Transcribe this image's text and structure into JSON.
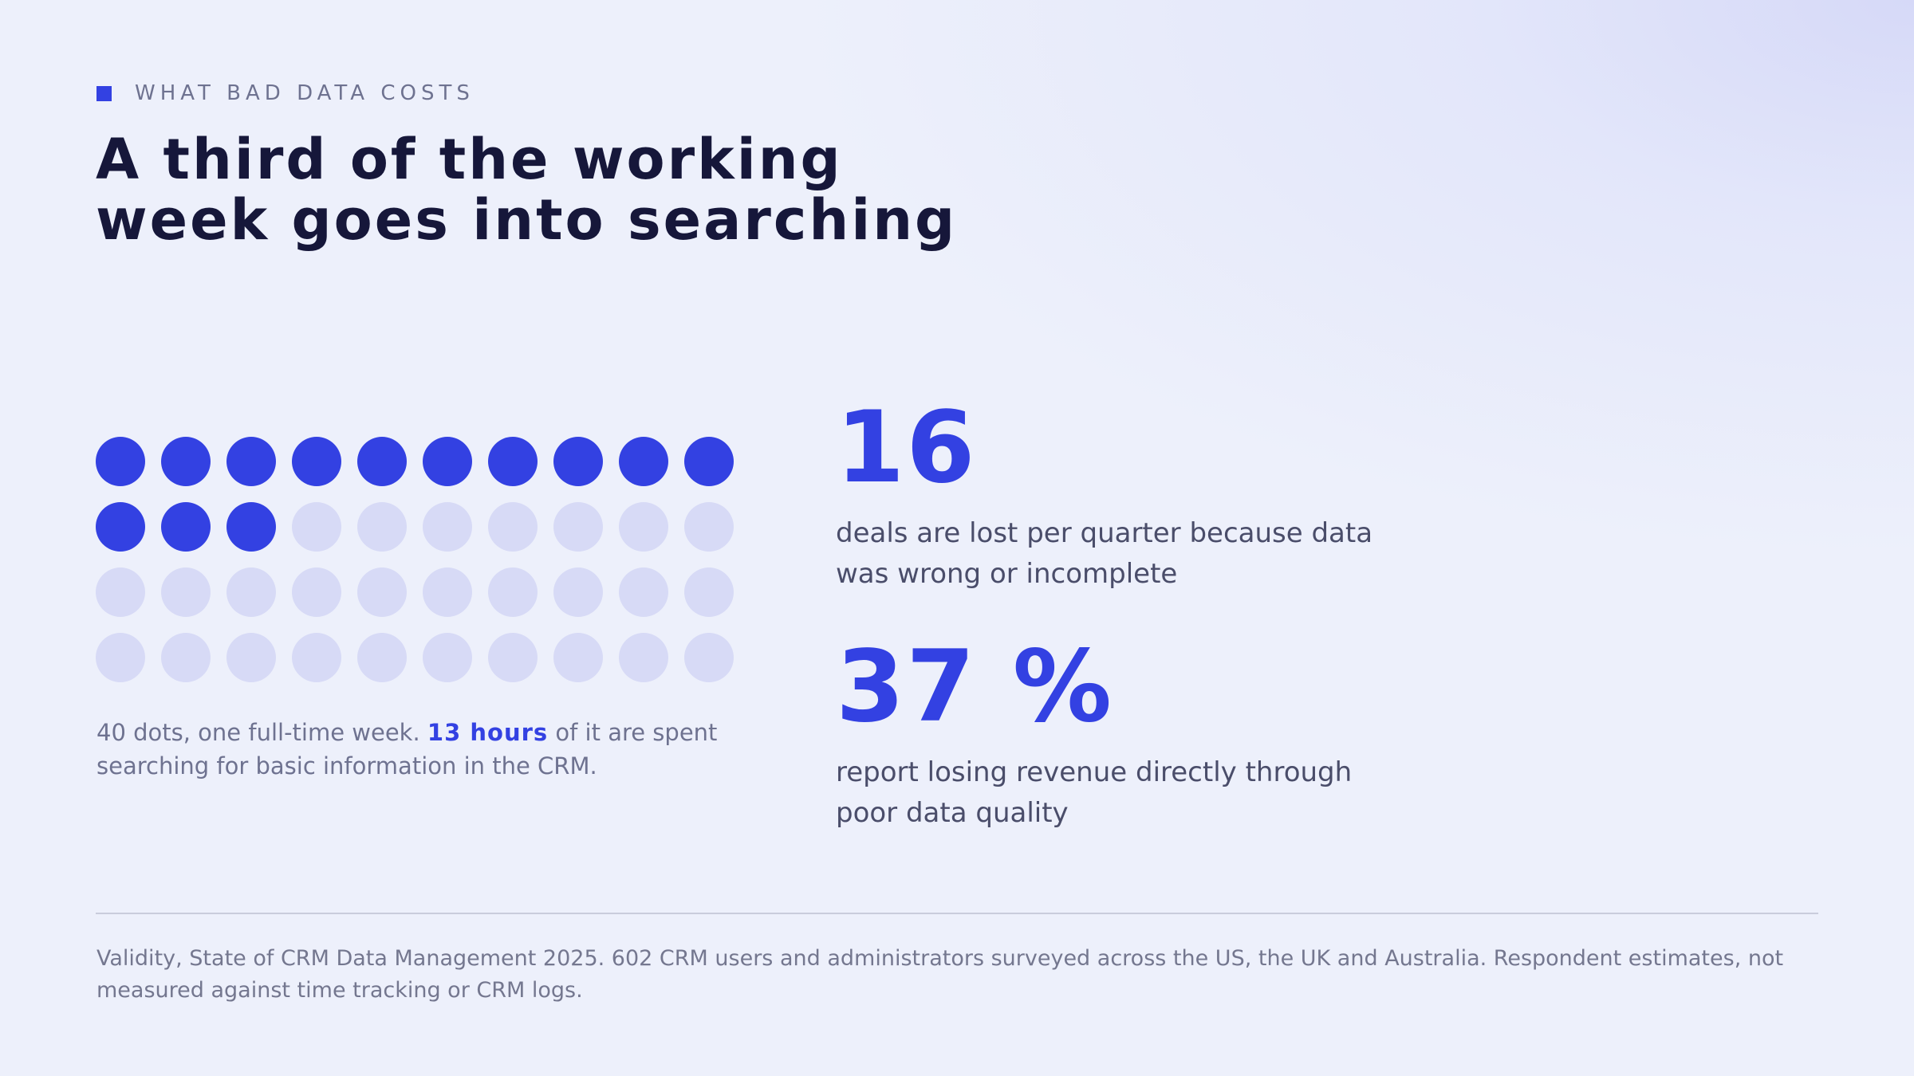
{
  "eyebrow": "WHAT BAD DATA COSTS",
  "title": "A third of the working week goes into searching",
  "waffle": {
    "total": 40,
    "filled": 13,
    "columns": 10,
    "filled_color": "#3341e2",
    "empty_color": "#d7daf6"
  },
  "caption": {
    "before": "40 dots, one full-time week. ",
    "highlight": "13 hours",
    "after": " of it are spent searching for basic information in the CRM."
  },
  "stats": [
    {
      "value": "16",
      "description": "deals are lost per quarter because data was wrong or incomplete"
    },
    {
      "value": "37 %",
      "description": "report losing revenue directly through poor data quality"
    }
  ],
  "source": "Validity, State of CRM Data Management 2025. 602 CRM users and administrators surveyed across the US, the UK and Australia. Respondent estimates, not measured against time tracking or CRM logs.",
  "colors": {
    "accent": "#3341e2",
    "title": "#16173a",
    "muted": "#6e7290"
  }
}
